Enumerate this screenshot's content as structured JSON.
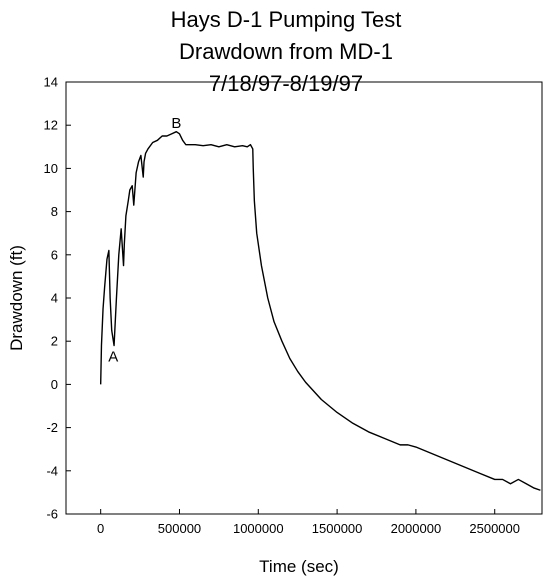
{
  "chart_data": {
    "type": "line",
    "title_lines": [
      "Hays D-1 Pumping Test",
      "Drawdown from MD-1",
      "7/18/97-8/19/97"
    ],
    "xlabel": "Time (sec)",
    "ylabel": "Drawdown (ft)",
    "xlim": [
      -220000,
      2800000
    ],
    "ylim": [
      -6,
      14
    ],
    "xticks": [
      0,
      500000,
      1000000,
      1500000,
      2000000,
      2500000
    ],
    "xtick_labels": [
      "0",
      "500000",
      "1000000",
      "1500000",
      "2000000",
      "2500000"
    ],
    "yticks": [
      -6,
      -4,
      -2,
      0,
      2,
      4,
      6,
      8,
      10,
      12,
      14
    ],
    "ytick_labels": [
      "-6",
      "-4",
      "-2",
      "0",
      "2",
      "4",
      "6",
      "8",
      "10",
      "12",
      "14"
    ],
    "grid": false,
    "legend": "none",
    "line_color": "#000000",
    "annotations": [
      {
        "text": "A",
        "x": 80000,
        "y": 1.3
      },
      {
        "text": "B",
        "x": 480000,
        "y": 12.1
      }
    ],
    "series": [
      {
        "x": [
          0,
          5000,
          15000,
          25000,
          40000,
          52000,
          60000,
          70000,
          85000,
          100000,
          115000,
          130000,
          145000,
          150000,
          160000,
          175000,
          185000,
          200000,
          210000,
          225000,
          240000,
          255000,
          270000,
          275000,
          285000,
          300000,
          330000,
          360000,
          390000,
          420000,
          450000,
          480000,
          500000,
          520000,
          540000,
          560000,
          600000,
          650000,
          700000,
          750000,
          800000,
          850000,
          900000,
          930000,
          950000,
          965000,
          968000,
          975000,
          990000,
          1020000,
          1060000,
          1100000,
          1150000,
          1200000,
          1250000,
          1300000,
          1400000,
          1500000,
          1600000,
          1700000,
          1800000,
          1900000,
          1950000,
          2000000,
          2100000,
          2200000,
          2300000,
          2400000,
          2500000,
          2550000,
          2600000,
          2650000,
          2700000,
          2750000,
          2790000
        ],
        "y": [
          0,
          1.8,
          3.5,
          4.5,
          5.8,
          6.2,
          4.0,
          2.5,
          1.8,
          4.0,
          6.0,
          7.2,
          5.5,
          6.5,
          7.8,
          8.5,
          9.0,
          9.2,
          8.3,
          9.8,
          10.3,
          10.6,
          9.6,
          10.3,
          10.7,
          10.9,
          11.2,
          11.3,
          11.5,
          11.5,
          11.6,
          11.7,
          11.6,
          11.3,
          11.1,
          11.1,
          11.1,
          11.05,
          11.1,
          11.0,
          11.1,
          11.0,
          11.05,
          11.0,
          11.1,
          10.9,
          10.0,
          8.5,
          7.0,
          5.5,
          4.0,
          2.9,
          2.0,
          1.2,
          0.6,
          0.1,
          -0.7,
          -1.3,
          -1.8,
          -2.2,
          -2.5,
          -2.8,
          -2.8,
          -2.9,
          -3.2,
          -3.5,
          -3.8,
          -4.1,
          -4.4,
          -4.4,
          -4.6,
          -4.4,
          -4.6,
          -4.8,
          -4.9
        ]
      }
    ]
  }
}
